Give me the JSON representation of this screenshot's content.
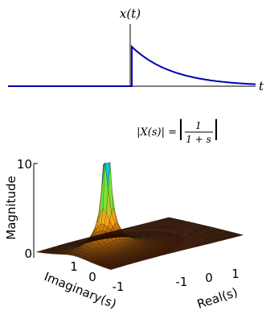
{
  "top_plot": {
    "signal_label": "x(t)",
    "time_label": "t",
    "line_color": "#0000b4",
    "axis_color": "#000000",
    "signal": {
      "x_range": [
        -3,
        3
      ],
      "step_at": 0,
      "peak": 1,
      "decay_rate": 1
    }
  },
  "equation": {
    "lhs": "|X(s)| =",
    "numerator": "1",
    "denominator": "1 + s"
  },
  "surface_plot": {
    "zlabel": "Magnitude",
    "xlabel": "Real(s)",
    "ylabel": "Imaginary(s)",
    "z_ticks": [
      "0",
      "10"
    ],
    "real_ticks": [
      "-1",
      "0",
      "1"
    ],
    "imag_ticks": [
      "1",
      "0",
      "-1"
    ],
    "z_range": [
      0,
      10
    ],
    "real_range": [
      -2,
      2
    ],
    "imag_range": [
      -2,
      2
    ],
    "colormap": "hot-green",
    "function": "1/|1+s|"
  }
}
